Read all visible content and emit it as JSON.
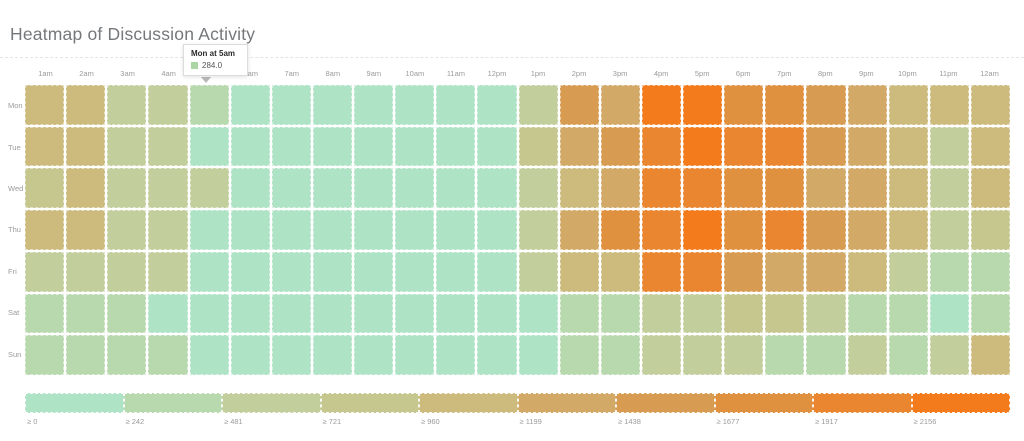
{
  "title": "Heatmap of Discussion Activity",
  "tooltip": {
    "title": "Mon at 5am",
    "value": "284.0",
    "swatch_color": "#a9d6a4"
  },
  "chart_data": {
    "type": "heatmap",
    "title": "Heatmap of Discussion Activity",
    "x_labels": [
      "1am",
      "2am",
      "3am",
      "4am",
      "5am",
      "6am",
      "7am",
      "8am",
      "9am",
      "10am",
      "11am",
      "12pm",
      "1pm",
      "2pm",
      "3pm",
      "4pm",
      "5pm",
      "6pm",
      "7pm",
      "8pm",
      "9pm",
      "10pm",
      "11pm",
      "12am"
    ],
    "y_labels": [
      "Mon",
      "Tue",
      "Wed",
      "Thu",
      "Fri",
      "Sat",
      "Sun"
    ],
    "legend_labels": [
      "≥ 0",
      "≥ 242",
      "≥ 481",
      "≥ 721",
      "≥ 960",
      "≥ 1199",
      "≥ 1438",
      "≥ 1677",
      "≥ 1917",
      "≥ 2156"
    ],
    "bucket_thresholds": [
      0,
      242,
      481,
      721,
      960,
      1199,
      1438,
      1677,
      1917,
      2156
    ],
    "bucket_colors": [
      "#aee3c6",
      "#b8d9ae",
      "#c2cf9c",
      "#c6c78f",
      "#ccbb7d",
      "#d2a967",
      "#d89b52",
      "#e09140",
      "#ea8630",
      "#f47b1b"
    ],
    "cell_buckets": [
      [
        4,
        4,
        2,
        2,
        1,
        0,
        0,
        0,
        0,
        0,
        0,
        0,
        2,
        6,
        5,
        9,
        9,
        7,
        7,
        6,
        5,
        4,
        4,
        4
      ],
      [
        4,
        4,
        2,
        2,
        0,
        0,
        0,
        0,
        0,
        0,
        0,
        0,
        3,
        5,
        6,
        8,
        9,
        8,
        8,
        6,
        5,
        4,
        2,
        4
      ],
      [
        3,
        4,
        2,
        2,
        2,
        0,
        0,
        0,
        0,
        0,
        0,
        0,
        2,
        4,
        5,
        8,
        8,
        7,
        7,
        5,
        5,
        4,
        2,
        4
      ],
      [
        4,
        4,
        2,
        2,
        0,
        0,
        0,
        0,
        0,
        0,
        0,
        0,
        2,
        5,
        7,
        8,
        9,
        7,
        8,
        6,
        5,
        4,
        2,
        3
      ],
      [
        2,
        2,
        2,
        2,
        0,
        0,
        0,
        0,
        0,
        0,
        0,
        0,
        2,
        4,
        4,
        8,
        8,
        6,
        5,
        5,
        4,
        2,
        1,
        1
      ],
      [
        1,
        1,
        1,
        0,
        0,
        0,
        0,
        0,
        0,
        0,
        0,
        0,
        0,
        1,
        1,
        2,
        2,
        3,
        3,
        2,
        1,
        1,
        0,
        1
      ],
      [
        1,
        1,
        1,
        1,
        0,
        0,
        0,
        0,
        0,
        0,
        0,
        0,
        0,
        1,
        1,
        2,
        2,
        2,
        1,
        1,
        2,
        1,
        2,
        4
      ]
    ],
    "known_values": [
      {
        "y": "Mon",
        "x": "5am",
        "value": 284.0
      }
    ],
    "legend_position": "bottom",
    "grid": "off"
  }
}
